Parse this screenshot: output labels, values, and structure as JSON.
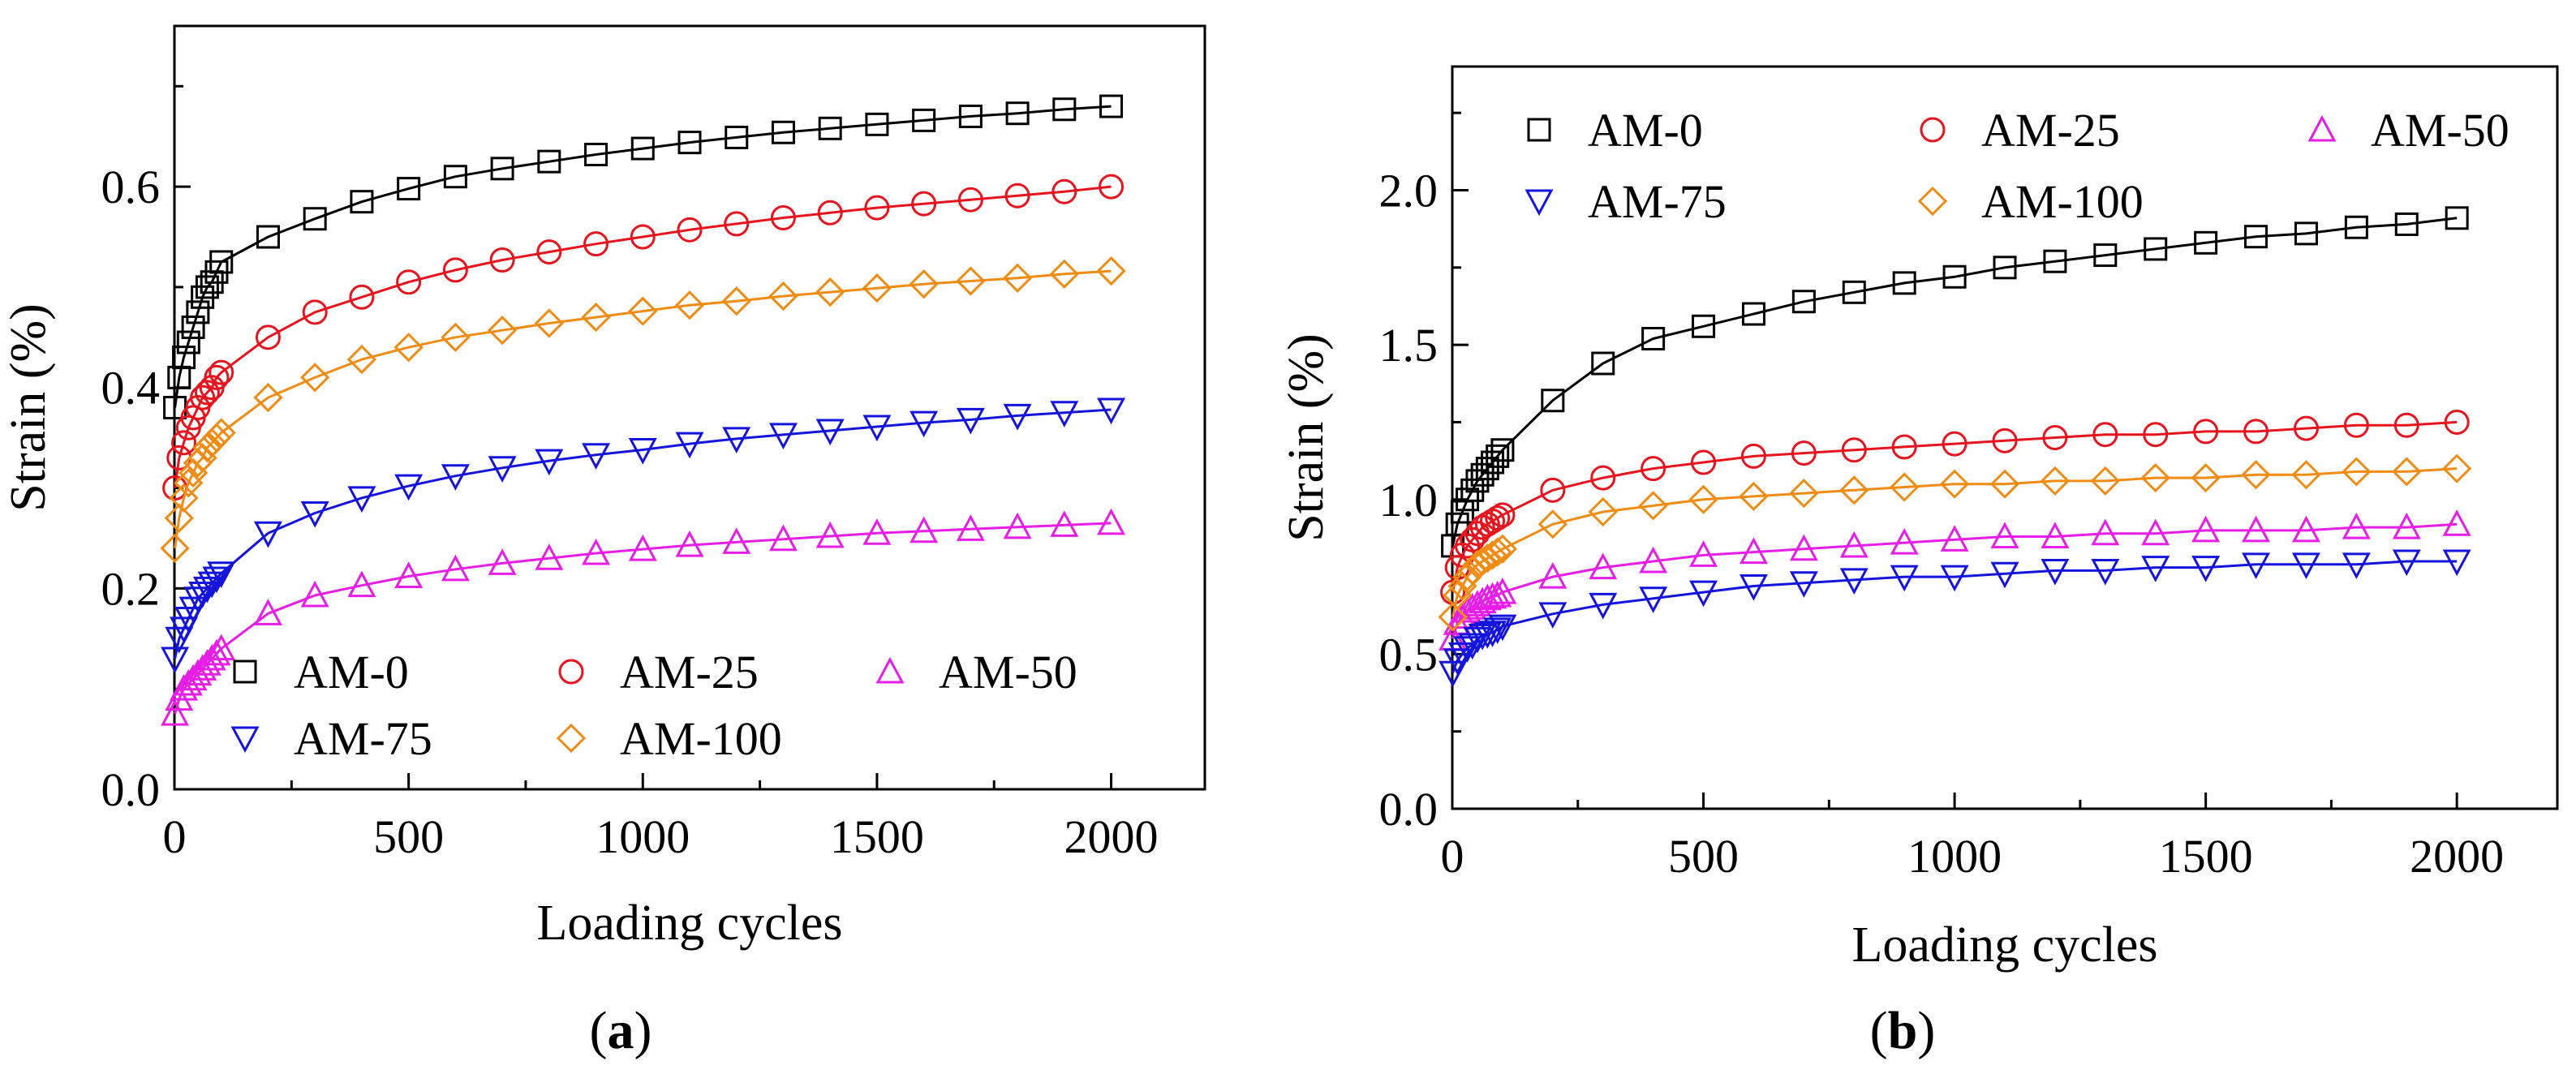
{
  "chart_data": [
    {
      "type": "scatter",
      "panel_label": "(a)",
      "panel_letter": "a",
      "xlabel": "Loading cycles",
      "ylabel": "Strain (%)",
      "xlim": [
        0,
        2200
      ],
      "ylim": [
        0,
        0.76
      ],
      "xticks": [
        0,
        500,
        1000,
        1500,
        2000
      ],
      "yticks": [
        0.0,
        0.2,
        0.4,
        0.6
      ],
      "xtick_labels": [
        "0",
        "500",
        "1000",
        "1500",
        "2000"
      ],
      "ytick_labels": [
        "0.0",
        "0.2",
        "0.4",
        "0.6"
      ],
      "grid": false,
      "legend": {
        "position": "bottom-right",
        "columns": 3
      },
      "x": [
        1,
        10,
        20,
        30,
        40,
        50,
        60,
        70,
        80,
        90,
        100,
        200,
        300,
        400,
        500,
        600,
        700,
        800,
        900,
        1000,
        1100,
        1200,
        1300,
        1400,
        1500,
        1600,
        1700,
        1800,
        1900,
        2000
      ],
      "series": [
        {
          "name": "AM-0",
          "color": "#000000",
          "marker": "square",
          "values": [
            0.38,
            0.41,
            0.43,
            0.445,
            0.46,
            0.475,
            0.49,
            0.5,
            0.505,
            0.515,
            0.525,
            0.55,
            0.568,
            0.585,
            0.598,
            0.61,
            0.618,
            0.625,
            0.632,
            0.638,
            0.644,
            0.649,
            0.654,
            0.658,
            0.662,
            0.666,
            0.67,
            0.673,
            0.677,
            0.68
          ]
        },
        {
          "name": "AM-25",
          "color": "#e8141d",
          "marker": "circle",
          "values": [
            0.3,
            0.33,
            0.345,
            0.36,
            0.37,
            0.38,
            0.39,
            0.395,
            0.4,
            0.41,
            0.415,
            0.45,
            0.475,
            0.49,
            0.505,
            0.517,
            0.527,
            0.535,
            0.543,
            0.55,
            0.557,
            0.563,
            0.569,
            0.574,
            0.579,
            0.583,
            0.587,
            0.591,
            0.595,
            0.6
          ]
        },
        {
          "name": "AM-50",
          "color": "#e61ee6",
          "marker": "triangle-up",
          "values": [
            0.075,
            0.09,
            0.1,
            0.105,
            0.11,
            0.115,
            0.12,
            0.125,
            0.13,
            0.135,
            0.14,
            0.175,
            0.193,
            0.203,
            0.212,
            0.219,
            0.225,
            0.23,
            0.235,
            0.239,
            0.243,
            0.246,
            0.249,
            0.252,
            0.255,
            0.257,
            0.259,
            0.261,
            0.263,
            0.265
          ]
        },
        {
          "name": "AM-75",
          "color": "#1414dc",
          "marker": "triangle-down",
          "values": [
            0.13,
            0.15,
            0.16,
            0.17,
            0.18,
            0.19,
            0.195,
            0.2,
            0.205,
            0.21,
            0.215,
            0.255,
            0.275,
            0.29,
            0.302,
            0.312,
            0.32,
            0.327,
            0.333,
            0.338,
            0.344,
            0.349,
            0.353,
            0.357,
            0.361,
            0.365,
            0.368,
            0.372,
            0.375,
            0.378
          ]
        },
        {
          "name": "AM-100",
          "color": "#f08c14",
          "marker": "diamond",
          "values": [
            0.24,
            0.27,
            0.29,
            0.305,
            0.315,
            0.325,
            0.33,
            0.34,
            0.345,
            0.35,
            0.355,
            0.39,
            0.41,
            0.428,
            0.44,
            0.45,
            0.457,
            0.464,
            0.47,
            0.476,
            0.482,
            0.486,
            0.491,
            0.495,
            0.499,
            0.503,
            0.506,
            0.509,
            0.513,
            0.516
          ]
        }
      ]
    },
    {
      "type": "scatter",
      "panel_label": "(b)",
      "panel_letter": "b",
      "xlabel": "Loading cycles",
      "ylabel": "Strain (%)",
      "xlim": [
        0,
        2200
      ],
      "ylim": [
        0,
        2.4
      ],
      "xticks": [
        0,
        500,
        1000,
        1500,
        2000
      ],
      "yticks": [
        0.0,
        0.5,
        1.0,
        1.5,
        2.0
      ],
      "xtick_labels": [
        "0",
        "500",
        "1000",
        "1500",
        "2000"
      ],
      "ytick_labels": [
        "0.0",
        "0.5",
        "1.0",
        "1.5",
        "2.0"
      ],
      "grid": false,
      "legend": {
        "position": "top",
        "columns": 3
      },
      "x": [
        1,
        10,
        20,
        30,
        40,
        50,
        60,
        70,
        80,
        90,
        100,
        200,
        300,
        400,
        500,
        600,
        700,
        800,
        900,
        1000,
        1100,
        1200,
        1300,
        1400,
        1500,
        1600,
        1700,
        1800,
        1900,
        2000
      ],
      "series": [
        {
          "name": "AM-0",
          "color": "#000000",
          "marker": "square",
          "values": [
            0.85,
            0.92,
            0.96,
            1.0,
            1.03,
            1.06,
            1.08,
            1.1,
            1.12,
            1.14,
            1.16,
            1.32,
            1.44,
            1.52,
            1.56,
            1.6,
            1.64,
            1.67,
            1.7,
            1.72,
            1.75,
            1.77,
            1.79,
            1.81,
            1.83,
            1.85,
            1.86,
            1.88,
            1.89,
            1.91
          ]
        },
        {
          "name": "AM-25",
          "color": "#e8141d",
          "marker": "circle",
          "values": [
            0.7,
            0.78,
            0.82,
            0.85,
            0.87,
            0.89,
            0.91,
            0.92,
            0.93,
            0.94,
            0.95,
            1.03,
            1.07,
            1.1,
            1.12,
            1.14,
            1.15,
            1.16,
            1.17,
            1.18,
            1.19,
            1.2,
            1.21,
            1.21,
            1.22,
            1.22,
            1.23,
            1.24,
            1.24,
            1.25
          ]
        },
        {
          "name": "AM-50",
          "color": "#e61ee6",
          "marker": "triangle-up",
          "values": [
            0.55,
            0.6,
            0.62,
            0.64,
            0.65,
            0.66,
            0.67,
            0.68,
            0.685,
            0.69,
            0.7,
            0.75,
            0.78,
            0.8,
            0.82,
            0.83,
            0.84,
            0.85,
            0.86,
            0.87,
            0.88,
            0.88,
            0.89,
            0.89,
            0.9,
            0.9,
            0.9,
            0.91,
            0.91,
            0.92
          ]
        },
        {
          "name": "AM-75",
          "color": "#1414dc",
          "marker": "triangle-down",
          "values": [
            0.44,
            0.48,
            0.5,
            0.52,
            0.53,
            0.55,
            0.56,
            0.565,
            0.57,
            0.58,
            0.59,
            0.63,
            0.66,
            0.68,
            0.7,
            0.72,
            0.73,
            0.74,
            0.75,
            0.75,
            0.76,
            0.77,
            0.77,
            0.78,
            0.78,
            0.79,
            0.79,
            0.79,
            0.8,
            0.8
          ]
        },
        {
          "name": "AM-100",
          "color": "#f08c14",
          "marker": "diamond",
          "values": [
            0.62,
            0.69,
            0.72,
            0.75,
            0.77,
            0.79,
            0.8,
            0.81,
            0.82,
            0.83,
            0.84,
            0.92,
            0.96,
            0.98,
            1.0,
            1.01,
            1.02,
            1.03,
            1.04,
            1.05,
            1.05,
            1.06,
            1.06,
            1.07,
            1.07,
            1.08,
            1.08,
            1.09,
            1.09,
            1.1
          ]
        }
      ]
    }
  ]
}
